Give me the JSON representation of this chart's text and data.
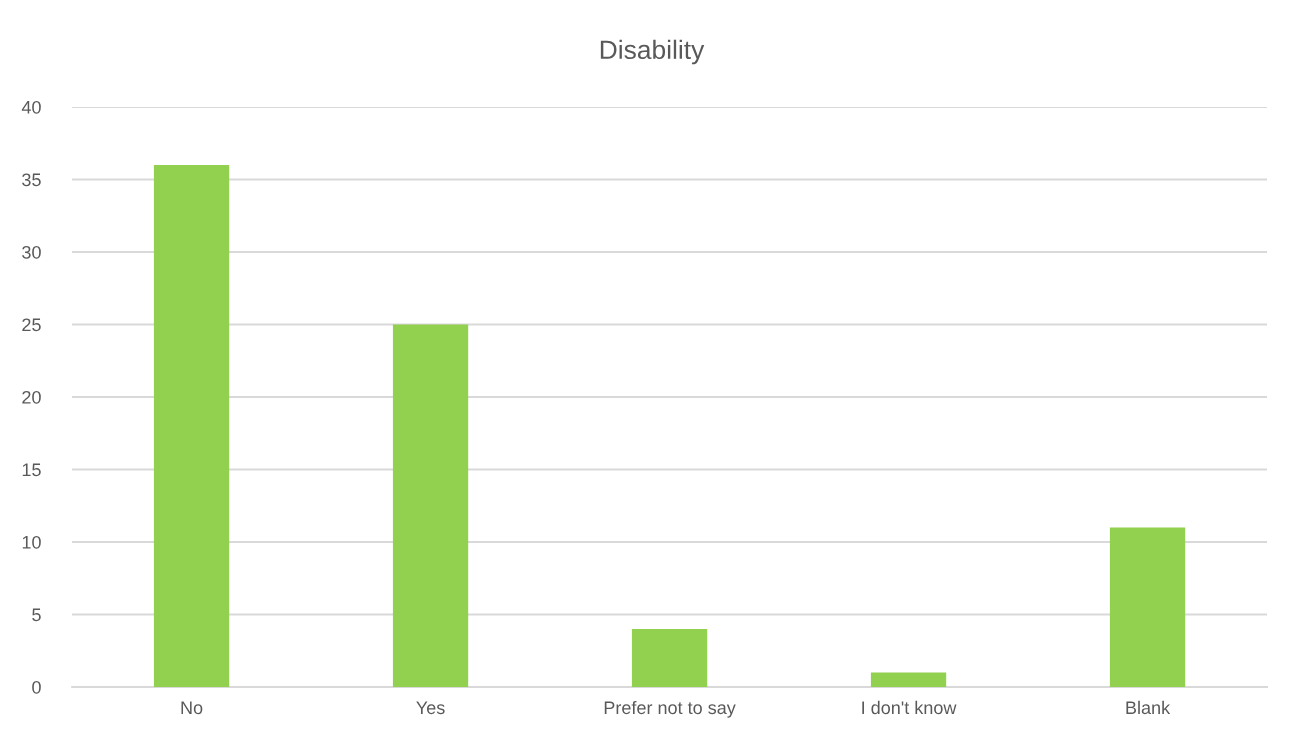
{
  "chart_data": {
    "type": "bar",
    "title": "Disability",
    "categories": [
      "No",
      "Yes",
      "Prefer not to say",
      "I don't know",
      "Blank"
    ],
    "values": [
      36,
      25,
      4,
      1,
      11
    ],
    "color": "#92d050",
    "ylim": [
      0,
      40
    ],
    "yticks": [
      0,
      5,
      10,
      15,
      20,
      25,
      30,
      35,
      40
    ],
    "grid": "y",
    "legend": false
  }
}
